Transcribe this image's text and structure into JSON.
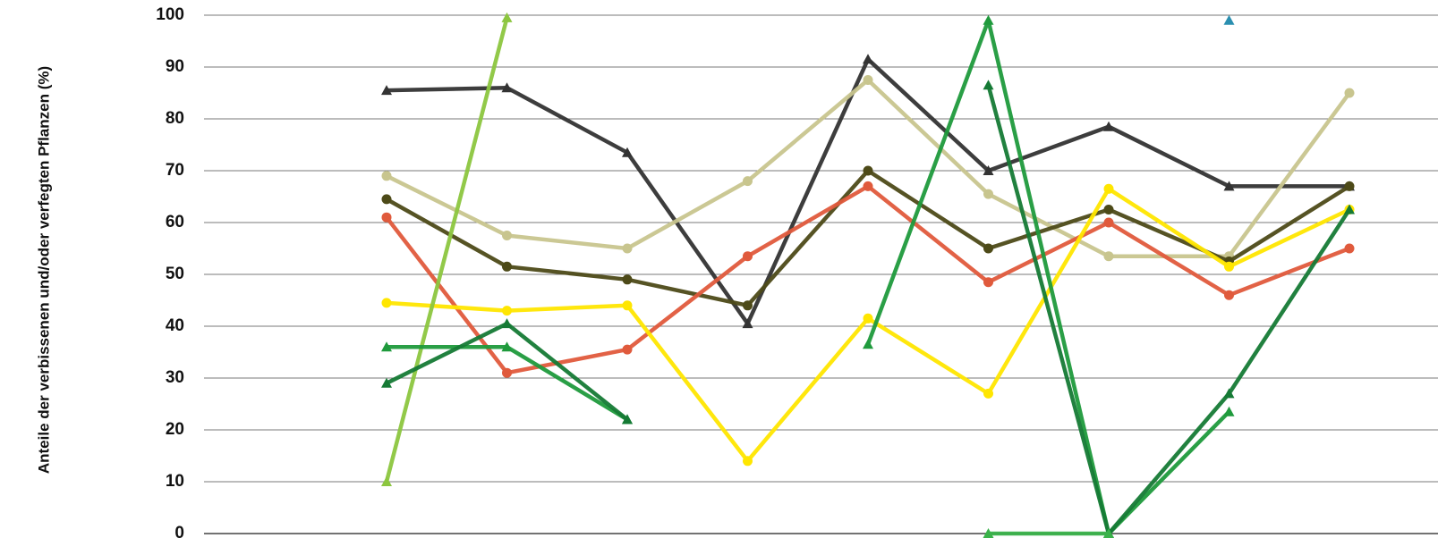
{
  "chart_data": {
    "type": "line",
    "title": "",
    "xlabel": "",
    "ylabel": "Anteile der verbissenen und/oder verfegten Pflanzen (%)",
    "ylim": [
      0,
      100
    ],
    "yticks": [
      "0",
      "10",
      "20",
      "30",
      "40",
      "50",
      "60",
      "70",
      "80",
      "90",
      "100"
    ],
    "grid": "horizontal",
    "legend": "none",
    "x": [
      1,
      2,
      3,
      4,
      5,
      6,
      7,
      8,
      9
    ],
    "series": [
      {
        "color": "#333333",
        "marker": "triangle",
        "values": [
          85.5,
          86,
          73.5,
          40.5,
          91.5,
          70,
          78.5,
          67,
          67
        ]
      },
      {
        "color": "#c8c58e",
        "marker": "circle",
        "values": [
          69,
          57.5,
          55,
          68,
          87.5,
          65.5,
          53.5,
          53.5,
          85
        ]
      },
      {
        "color": "#4d4a18",
        "marker": "circle",
        "values": [
          64.5,
          51.5,
          49,
          44,
          70,
          55,
          62.5,
          52.5,
          67
        ]
      },
      {
        "color": "#e05a3c",
        "marker": "circle",
        "values": [
          61,
          31,
          35.5,
          53.5,
          67,
          48.5,
          60,
          46,
          55
        ]
      },
      {
        "color": "#ffe600",
        "marker": "circle",
        "values": [
          44.5,
          43,
          44,
          14,
          41.5,
          27,
          66.5,
          51.5,
          62.5
        ]
      },
      {
        "color": "#8cc63f",
        "marker": "triangle",
        "values": [
          10,
          99.5,
          null,
          null,
          null,
          null,
          null,
          null,
          null
        ]
      },
      {
        "color": "#1f9a3c",
        "marker": "triangle",
        "values": [
          36,
          36,
          22,
          null,
          36.5,
          99,
          0,
          23.5,
          null
        ]
      },
      {
        "color": "#157a35",
        "marker": "triangle",
        "values": [
          29,
          40.5,
          22,
          null,
          null,
          86.5,
          0,
          27,
          62.5
        ]
      },
      {
        "color": "#3ab24a",
        "marker": "triangle",
        "values": [
          null,
          null,
          null,
          null,
          null,
          0,
          0,
          null,
          null
        ]
      },
      {
        "color": "#2a8fb0",
        "marker": "triangle",
        "values": [
          null,
          null,
          null,
          null,
          null,
          null,
          null,
          99,
          null
        ]
      }
    ]
  }
}
